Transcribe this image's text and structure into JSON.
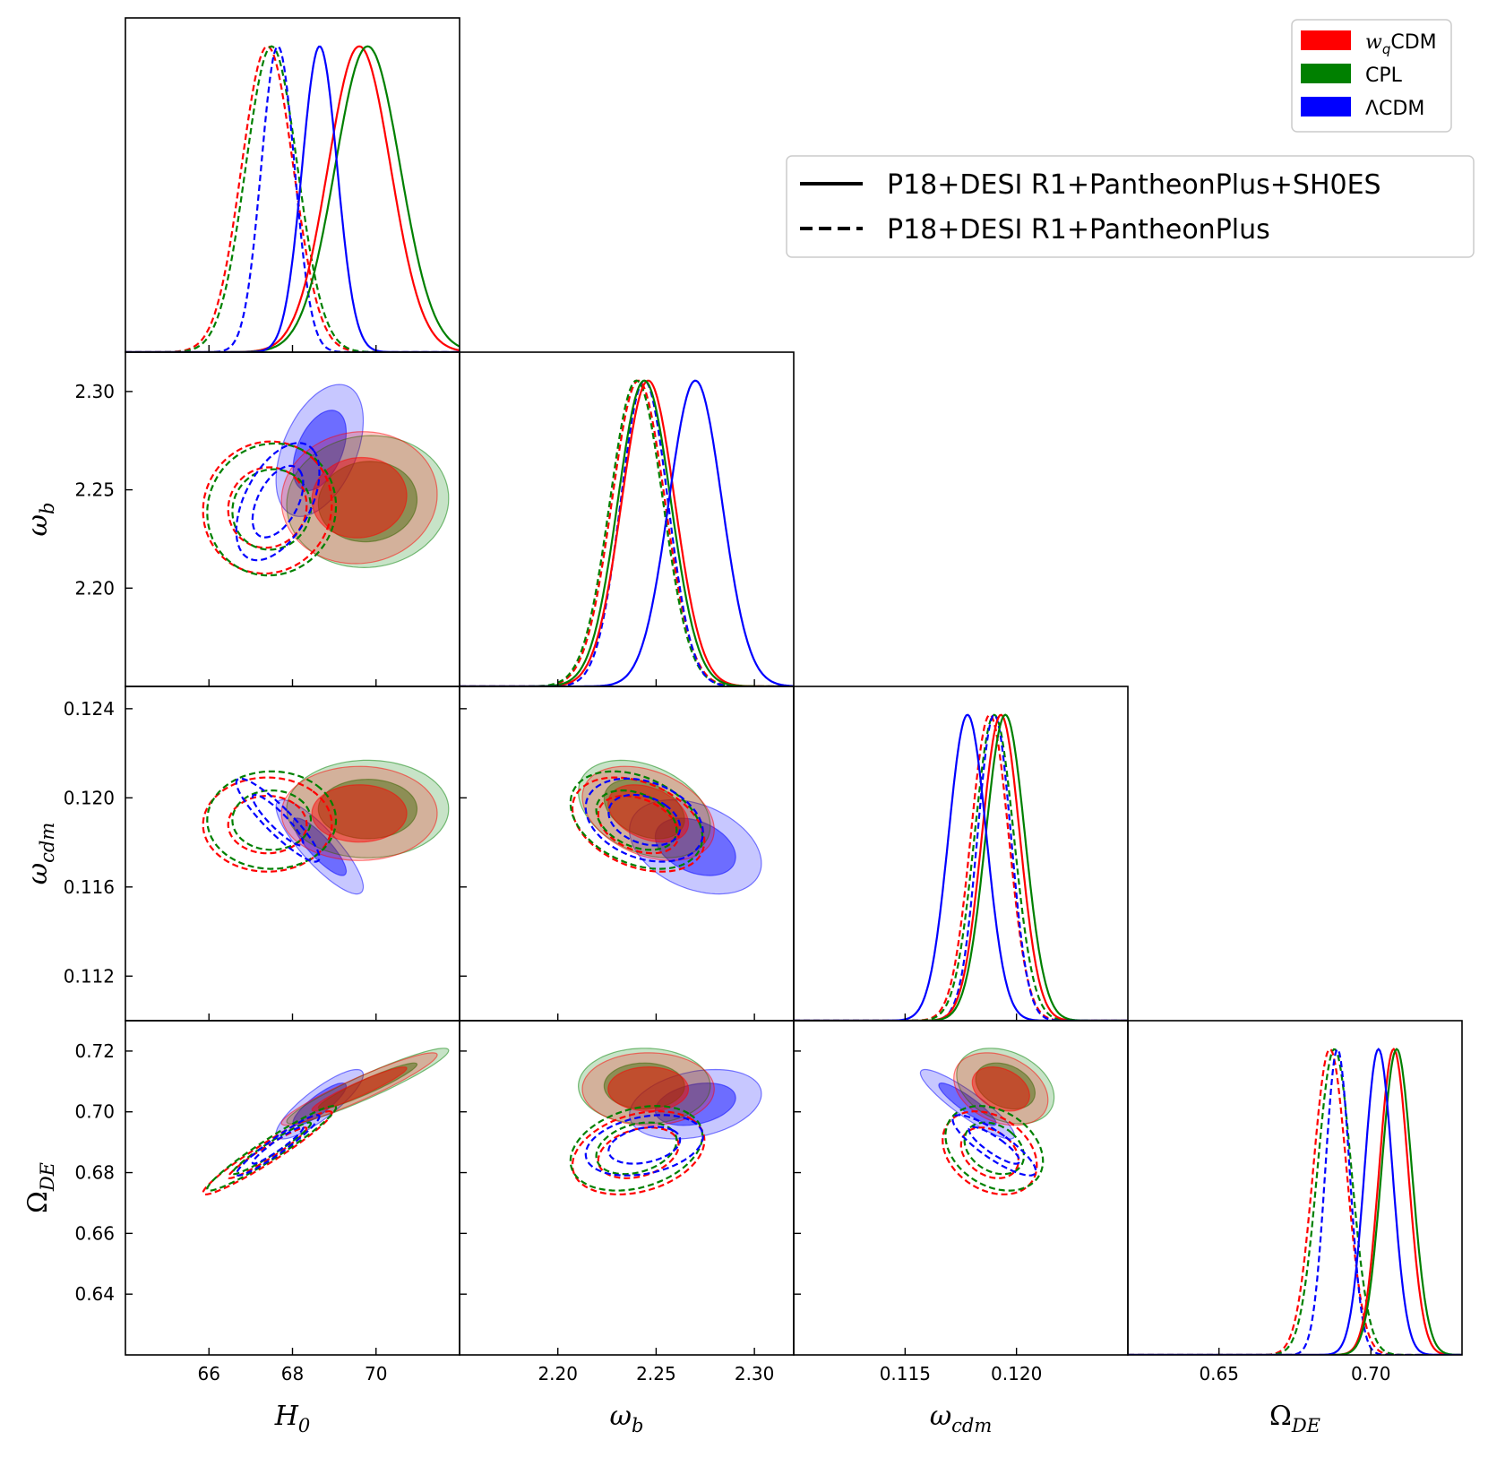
{
  "chart_data": {
    "type": "corner-plot",
    "parameters": [
      {
        "id": "H0",
        "label": "H",
        "label_sub": "0",
        "ticks": [
          66,
          68,
          70
        ],
        "tick_labels": [
          "66",
          "68",
          "70"
        ],
        "range": [
          64.0,
          72.0
        ]
      },
      {
        "id": "omega_b",
        "label": "ω",
        "label_sub": "b",
        "ticks": [
          2.2,
          2.25,
          2.3
        ],
        "tick_labels": [
          "2.20",
          "2.25",
          "2.30"
        ],
        "range": [
          2.15,
          2.32
        ]
      },
      {
        "id": "omega_cdm",
        "label": "ω",
        "label_sub": "cdm",
        "ticks": [
          0.112,
          0.116,
          0.12,
          0.124
        ],
        "tick_labels": [
          "0.112",
          "0.116",
          "0.120",
          "0.124"
        ],
        "x_ticks": [
          0.115,
          0.12
        ],
        "x_tick_labels": [
          "0.115",
          "0.120"
        ],
        "range": [
          0.11,
          0.125
        ]
      },
      {
        "id": "Omega_DE",
        "label": "Ω",
        "label_sub": "DE",
        "ticks": [
          0.64,
          0.66,
          0.68,
          0.7,
          0.72
        ],
        "tick_labels": [
          "0.64",
          "0.66",
          "0.68",
          "0.70",
          "0.72"
        ],
        "x_ticks": [
          0.65,
          0.7
        ],
        "x_tick_labels": [
          "0.65",
          "0.70"
        ],
        "range": [
          0.62,
          0.73
        ]
      }
    ],
    "models": [
      {
        "name": "wqCDM",
        "legend_label_main": "w",
        "legend_label_sub": "q",
        "legend_label_tail": "CDM",
        "color": "#ff0000"
      },
      {
        "name": "CPL",
        "legend_label_main": "CPL",
        "legend_label_sub": "",
        "legend_label_tail": "",
        "color": "#008000"
      },
      {
        "name": "ΛCDM",
        "legend_label_main": "ΛCDM",
        "legend_label_sub": "",
        "legend_label_tail": "",
        "color": "#0000ff"
      }
    ],
    "datasets": [
      {
        "label": "P18+DESI R1+PantheonPlus+SH0ES",
        "linestyle": "solid",
        "filled": true
      },
      {
        "label": "P18+DESI R1+PantheonPlus",
        "linestyle": "dashed",
        "filled": false
      }
    ],
    "posteriors": {
      "solid": {
        "wqCDM": {
          "mean": [
            69.6,
            2.246,
            0.1193,
            0.7075
          ],
          "sigma": [
            0.75,
            0.0135,
            0.00085,
            0.0048
          ],
          "corr": {
            "0-1": 0.05,
            "0-2": 0.0,
            "0-3": 0.94,
            "1-2": -0.35,
            "1-3": 0.0,
            "2-3": -0.3
          }
        },
        "CPL": {
          "mean": [
            69.8,
            2.244,
            0.1195,
            0.7085
          ],
          "sigma": [
            0.78,
            0.0135,
            0.00088,
            0.005
          ],
          "corr": {
            "0-1": 0.05,
            "0-2": 0.0,
            "0-3": 0.94,
            "1-2": -0.35,
            "1-3": 0.0,
            "2-3": -0.3
          }
        },
        "ΛCDM": {
          "mean": [
            68.65,
            2.27,
            0.1178,
            0.7025
          ],
          "sigma": [
            0.42,
            0.0135,
            0.00085,
            0.0046
          ],
          "corr": {
            "0-1": 0.45,
            "0-2": -0.85,
            "0-3": 0.85,
            "1-2": -0.35,
            "1-3": 0.3,
            "2-3": -0.9
          }
        }
      },
      "dashed": {
        "wqCDM": {
          "mean": [
            67.4,
            2.241,
            0.1188,
            0.6865
          ],
          "sigma": [
            0.62,
            0.0135,
            0.00085,
            0.0055
          ],
          "corr": {
            "0-1": 0.05,
            "0-2": 0.0,
            "0-3": 0.96,
            "1-2": -0.35,
            "1-3": 0.3,
            "2-3": -0.3
          }
        },
        "CPL": {
          "mean": [
            67.5,
            2.24,
            0.119,
            0.688
          ],
          "sigma": [
            0.62,
            0.0135,
            0.00088,
            0.0056
          ],
          "corr": {
            "0-1": 0.05,
            "0-2": 0.0,
            "0-3": 0.96,
            "1-2": -0.35,
            "1-3": 0.3,
            "2-3": -0.3
          }
        },
        "ΛCDM": {
          "mean": [
            67.65,
            2.244,
            0.119,
            0.689
          ],
          "sigma": [
            0.4,
            0.012,
            0.00075,
            0.004
          ],
          "corr": {
            "0-1": 0.5,
            "0-2": -0.9,
            "0-3": 0.95,
            "1-2": -0.3,
            "1-3": 0.3,
            "2-3": -0.85
          }
        }
      }
    }
  }
}
